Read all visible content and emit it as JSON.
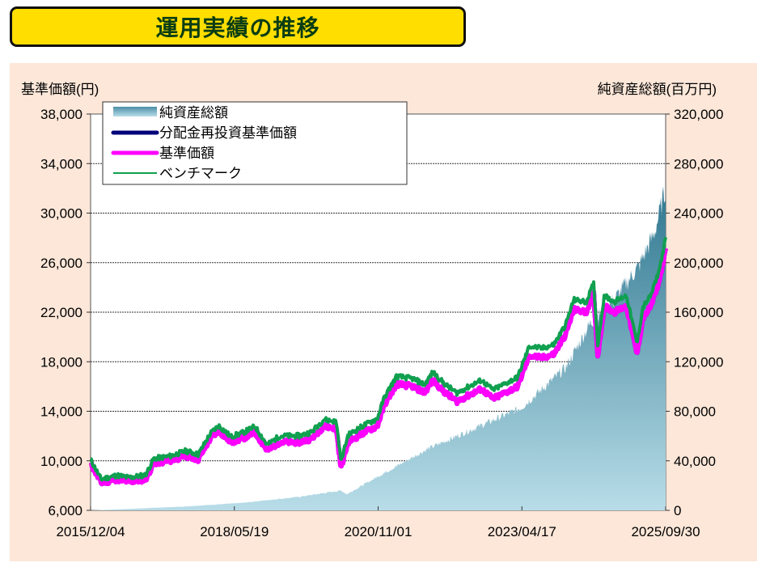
{
  "title": "運用実績の推移",
  "chart_data": {
    "type": "line",
    "left_axis_label": "基準価額(円)",
    "right_axis_label": "純資産総額(百万円)",
    "left_ylim": [
      6000,
      38000
    ],
    "right_ylim": [
      0,
      320000
    ],
    "left_ticks": [
      "38,000",
      "34,000",
      "30,000",
      "26,000",
      "22,000",
      "18,000",
      "14,000",
      "10,000",
      "6,000"
    ],
    "right_ticks": [
      "320,000",
      "280,000",
      "240,000",
      "200,000",
      "160,000",
      "120,000",
      "80,000",
      "40,000",
      "0"
    ],
    "x_ticks": [
      "2015/12/04",
      "2018/05/19",
      "2020/11/01",
      "2023/04/17",
      "2025/09/30"
    ],
    "x_range": [
      2015.92,
      2025.75
    ],
    "grid": true,
    "legend_position": "top-left",
    "legend": [
      "純資産総額",
      "分配金再投資基準価額",
      "基準価額",
      "ベンチマーク"
    ],
    "colors": {
      "nav": "#5fa3b8",
      "reinvest": "#00007a",
      "price": "#ff00ff",
      "benchmark": "#10a050"
    },
    "price": {
      "x": [
        2015.92,
        2016.1,
        2016.37,
        2016.58,
        2016.86,
        2017.0,
        2017.28,
        2017.55,
        2017.76,
        2017.97,
        2018.11,
        2018.32,
        2018.52,
        2018.73,
        2018.94,
        2019.15,
        2019.49,
        2019.7,
        2019.91,
        2020.12,
        2020.2,
        2020.32,
        2020.6,
        2020.82,
        2020.94,
        2021.15,
        2021.43,
        2021.63,
        2021.77,
        2021.98,
        2022.18,
        2022.39,
        2022.6,
        2022.8,
        2023.01,
        2023.22,
        2023.42,
        2023.63,
        2023.84,
        2024.04,
        2024.18,
        2024.39,
        2024.52,
        2024.59,
        2024.7,
        2024.87,
        2025.08,
        2025.26,
        2025.36,
        2025.5,
        2025.64,
        2025.75
      ],
      "values": [
        9800,
        8200,
        8500,
        8300,
        8500,
        9800,
        10000,
        10400,
        10100,
        11800,
        12400,
        11500,
        11800,
        12300,
        10800,
        11500,
        11500,
        11800,
        12800,
        12600,
        9400,
        11500,
        12300,
        12800,
        14500,
        16200,
        16000,
        15500,
        16500,
        15500,
        14800,
        15300,
        15800,
        15000,
        15500,
        16000,
        18500,
        18300,
        18600,
        20200,
        22200,
        22000,
        23500,
        18500,
        22500,
        22000,
        22500,
        18600,
        21500,
        22500,
        24500,
        27000
      ]
    },
    "benchmark_offset_start": 300,
    "benchmark_offset_end": 900,
    "nav": {
      "x": [
        2015.92,
        2016.5,
        2017.5,
        2018.5,
        2019.5,
        2020.2,
        2020.3,
        2020.82,
        2021.7,
        2022.67,
        2023.29,
        2024.04,
        2024.45,
        2024.87,
        2025.29,
        2025.56,
        2025.75
      ],
      "values": [
        0,
        1000,
        3000,
        6000,
        11000,
        16000,
        13000,
        27000,
        50000,
        70000,
        83000,
        115000,
        150000,
        170000,
        197000,
        224000,
        260000
      ]
    }
  }
}
